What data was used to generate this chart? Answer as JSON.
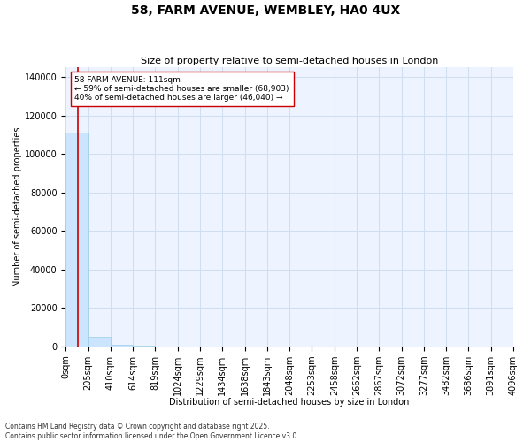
{
  "title": "58, FARM AVENUE, WEMBLEY, HA0 4UX",
  "subtitle": "Size of property relative to semi-detached houses in London",
  "xlabel": "Distribution of semi-detached houses by size in London",
  "ylabel": "Number of semi-detached properties",
  "property_size": 111,
  "annotation_title": "58 FARM AVENUE: 111sqm",
  "annotation_line1": "← 59% of semi-detached houses are smaller (68,903)",
  "annotation_line2": "40% of semi-detached houses are larger (46,040) →",
  "footer_line1": "Contains HM Land Registry data © Crown copyright and database right 2025.",
  "footer_line2": "Contains public sector information licensed under the Open Government Licence v3.0.",
  "bar_edges": [
    0,
    205,
    410,
    614,
    819,
    1024,
    1229,
    1434,
    1638,
    1843,
    2048,
    2253,
    2458,
    2662,
    2867,
    3072,
    3277,
    3482,
    3686,
    3891,
    4096
  ],
  "bar_heights": [
    111000,
    5000,
    900,
    250,
    120,
    60,
    35,
    20,
    15,
    10,
    8,
    6,
    5,
    4,
    3,
    3,
    2,
    2,
    1,
    1
  ],
  "bar_color": "#cce5ff",
  "bar_edgecolor": "#99cce8",
  "line_color": "#cc0000",
  "annotation_box_facecolor": "#ffffff",
  "annotation_box_edgecolor": "#cc0000",
  "grid_color": "#d0dff0",
  "background_color": "#ffffff",
  "plot_background": "#eef4ff",
  "ylim": [
    0,
    145000
  ],
  "yticks": [
    0,
    20000,
    40000,
    60000,
    80000,
    100000,
    120000,
    140000
  ],
  "tick_fontsize": 7,
  "xlabel_fontsize": 7,
  "ylabel_fontsize": 7,
  "title_fontsize": 10,
  "subtitle_fontsize": 8,
  "annotation_fontsize": 6.5,
  "footer_fontsize": 5.5
}
